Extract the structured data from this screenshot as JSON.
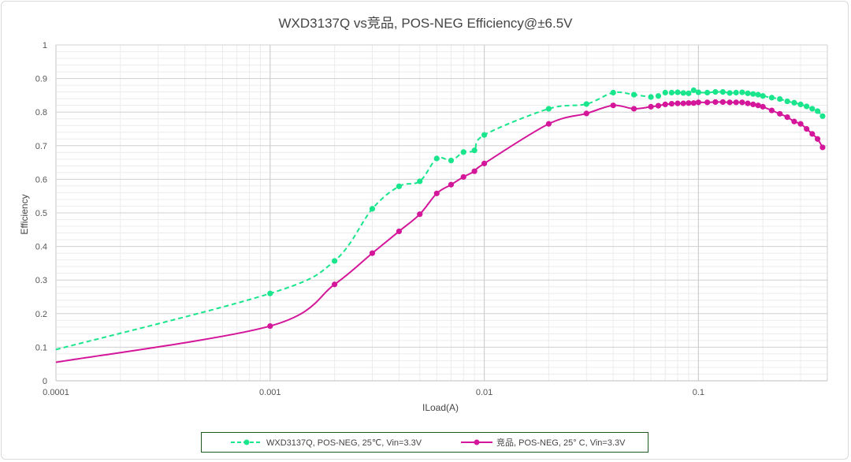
{
  "chart_data": {
    "type": "line",
    "title": "WXD3137Q vs竞品, POS-NEG Efficiency@±6.5V",
    "xlabel": "ILoad(A)",
    "ylabel": "Efficiency",
    "x_scale": "log",
    "xlim": [
      0.0001,
      0.4
    ],
    "ylim": [
      0,
      1
    ],
    "x_ticks": [
      0.0001,
      0.001,
      0.01,
      0.1
    ],
    "x_tick_labels": [
      "0.0001",
      "0.001",
      "0.01",
      "0.1"
    ],
    "y_ticks": [
      0,
      0.1,
      0.2,
      0.3,
      0.4,
      0.5,
      0.6,
      0.7,
      0.8,
      0.9,
      1
    ],
    "y_tick_labels": [
      "0",
      "0.1",
      "0.2",
      "0.3",
      "0.4",
      "0.5",
      "0.6",
      "0.7",
      "0.8",
      "0.9",
      "1"
    ],
    "grid": true,
    "legend_position": "bottom",
    "series": [
      {
        "name": "WXD3137Q, POS-NEG, 25℃, Vin=3.3V",
        "color": "#19e68c",
        "dash": "dashed",
        "x": [
          0.0001,
          0.001,
          0.002,
          0.003,
          0.004,
          0.005,
          0.006,
          0.007,
          0.008,
          0.009,
          0.01,
          0.02,
          0.03,
          0.04,
          0.05,
          0.06,
          0.065,
          0.07,
          0.075,
          0.08,
          0.085,
          0.09,
          0.095,
          0.1,
          0.11,
          0.12,
          0.13,
          0.14,
          0.15,
          0.16,
          0.17,
          0.18,
          0.19,
          0.2,
          0.22,
          0.24,
          0.26,
          0.28,
          0.3,
          0.32,
          0.34,
          0.36,
          0.38
        ],
        "y": [
          0.093,
          0.26,
          0.357,
          0.512,
          0.579,
          0.594,
          0.662,
          0.656,
          0.681,
          0.686,
          0.732,
          0.81,
          0.824,
          0.858,
          0.852,
          0.845,
          0.848,
          0.858,
          0.858,
          0.859,
          0.857,
          0.856,
          0.865,
          0.859,
          0.858,
          0.86,
          0.86,
          0.857,
          0.858,
          0.859,
          0.856,
          0.854,
          0.852,
          0.848,
          0.843,
          0.839,
          0.832,
          0.828,
          0.823,
          0.817,
          0.81,
          0.803,
          0.788
        ]
      },
      {
        "name": "竞品, POS-NEG, 25° C, Vin=3.3V",
        "color": "#d4179a",
        "dash": "solid",
        "x": [
          0.0001,
          0.001,
          0.002,
          0.003,
          0.004,
          0.005,
          0.006,
          0.007,
          0.008,
          0.009,
          0.01,
          0.02,
          0.03,
          0.04,
          0.05,
          0.06,
          0.065,
          0.07,
          0.075,
          0.08,
          0.085,
          0.09,
          0.095,
          0.1,
          0.11,
          0.12,
          0.13,
          0.14,
          0.15,
          0.16,
          0.17,
          0.18,
          0.19,
          0.2,
          0.22,
          0.24,
          0.26,
          0.28,
          0.3,
          0.32,
          0.34,
          0.36,
          0.38
        ],
        "y": [
          0.055,
          0.163,
          0.287,
          0.38,
          0.445,
          0.496,
          0.558,
          0.584,
          0.607,
          0.624,
          0.647,
          0.765,
          0.796,
          0.82,
          0.81,
          0.816,
          0.819,
          0.823,
          0.825,
          0.826,
          0.826,
          0.827,
          0.827,
          0.829,
          0.829,
          0.83,
          0.83,
          0.829,
          0.829,
          0.829,
          0.826,
          0.823,
          0.82,
          0.816,
          0.805,
          0.795,
          0.785,
          0.772,
          0.765,
          0.75,
          0.735,
          0.72,
          0.695
        ]
      }
    ]
  }
}
